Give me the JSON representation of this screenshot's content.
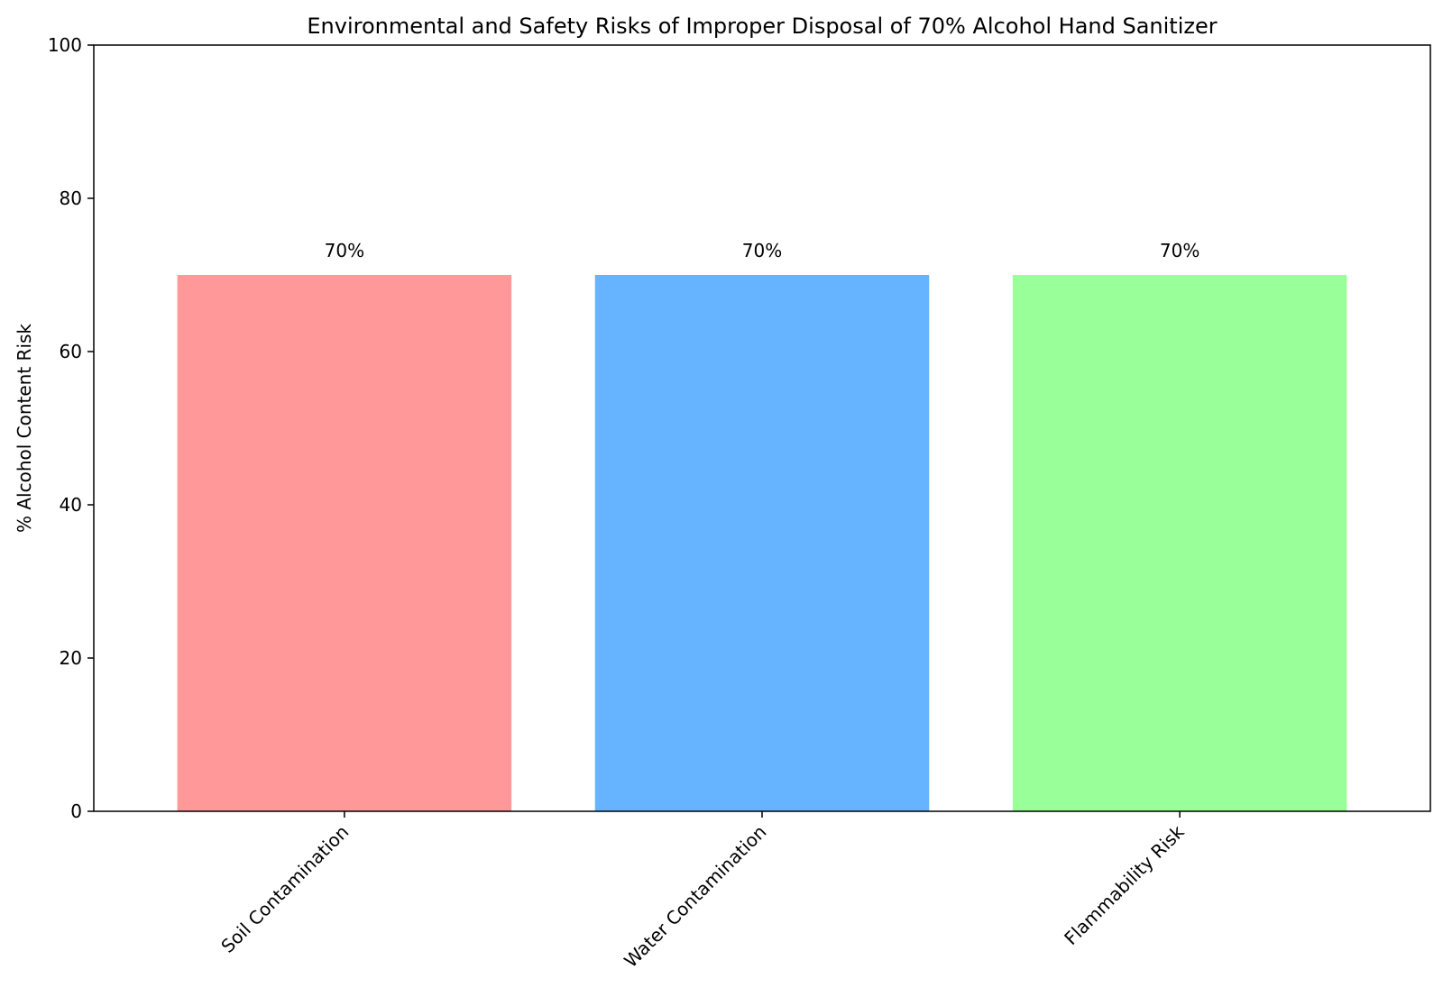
{
  "chart_data": {
    "type": "bar",
    "title": "Environmental and Safety Risks of Improper Disposal of 70% Alcohol Hand Sanitizer",
    "xlabel": "",
    "ylabel": "% Alcohol Content Risk",
    "categories": [
      "Soil Contamination",
      "Water Contamination",
      "Flammability Risk"
    ],
    "values": [
      70,
      70,
      70
    ],
    "data_labels": [
      "70%",
      "70%",
      "70%"
    ],
    "colors": [
      "#ff9999",
      "#66b3ff",
      "#99ff99"
    ],
    "ylim": [
      0,
      100
    ],
    "yticks": [
      0,
      20,
      40,
      60,
      80,
      100
    ],
    "grid": false,
    "legend": "none"
  }
}
